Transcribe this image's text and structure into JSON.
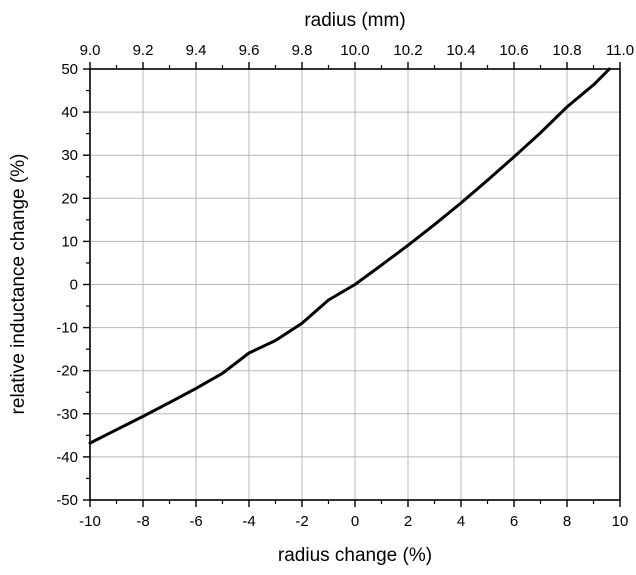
{
  "chart_data": {
    "type": "line",
    "xlabel": "radius change (%)",
    "ylabel": "relative inductance change (%)",
    "x2label": "radius (mm)",
    "xlim": [
      -10,
      10
    ],
    "ylim": [
      -50,
      50
    ],
    "x2lim": [
      9.0,
      11.0
    ],
    "xticks": [
      "-10",
      "-8",
      "-6",
      "-4",
      "-2",
      "0",
      "2",
      "4",
      "6",
      "8",
      "10"
    ],
    "yticks": [
      "-50",
      "-40",
      "-30",
      "-20",
      "-10",
      "0",
      "10",
      "20",
      "30",
      "40",
      "50"
    ],
    "x2ticks": [
      "9.0",
      "9.2",
      "9.4",
      "9.6",
      "9.8",
      "10.0",
      "10.2",
      "10.4",
      "10.6",
      "10.8",
      "11.0"
    ],
    "grid": true,
    "line_color": "#000000",
    "series": [
      {
        "x": [
          -10,
          -9,
          -8,
          -7,
          -6,
          -5,
          -4,
          -3,
          -2,
          -1,
          0,
          1,
          2,
          3,
          4,
          5,
          6,
          7,
          8,
          9,
          9.6
        ],
        "values": [
          -36.8,
          -33.7,
          -30.6,
          -27.4,
          -24.1,
          -20.6,
          -15.9,
          -13.0,
          -9.0,
          -3.6,
          0.0,
          4.5,
          9.1,
          13.9,
          18.9,
          24.2,
          29.6,
          35.2,
          41.2,
          46.3,
          50.0
        ]
      }
    ]
  }
}
